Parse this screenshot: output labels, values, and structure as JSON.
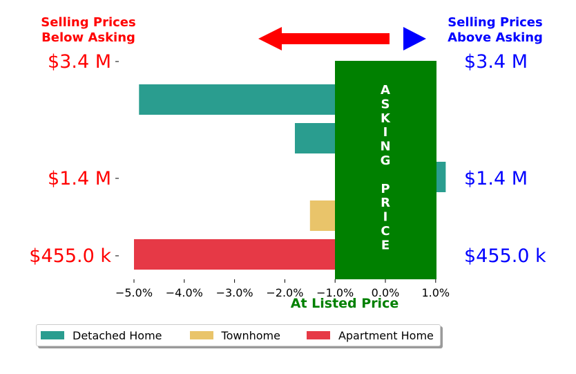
{
  "header": {
    "left_label": [
      "Selling Prices",
      "Below Asking"
    ],
    "right_label": [
      "Selling Prices",
      "Above Asking"
    ],
    "left_color": "#ff0000",
    "right_color": "#0000ff"
  },
  "arrows": {
    "left_arrow_icon": "left-arrow-icon",
    "right_arrow_icon": "right-arrow-icon",
    "left_color": "#ff0000",
    "right_color": "#0000ff"
  },
  "asking_box": {
    "letters": [
      "A",
      "S",
      "K",
      "I",
      "N",
      "G",
      "",
      "P",
      "R",
      "I",
      "C",
      "E"
    ],
    "color": "#008000"
  },
  "chart_data": {
    "type": "bar",
    "orientation": "horizontal",
    "xlabel": "At Listed Price",
    "xlim": [
      -5.2,
      1.0
    ],
    "x_ticks": [
      -5,
      -4,
      -3,
      -2,
      -1,
      0,
      1
    ],
    "x_tick_labels": [
      "−5.0%",
      "−4.0%",
      "−3.0%",
      "−2.0%",
      "−1.0%",
      "0.0%",
      "1.0%"
    ],
    "y_tick_labels_left": [
      "$3.4 M",
      "$1.4 M",
      "$455.0 k"
    ],
    "y_tick_labels_right": [
      "$3.4 M",
      "$1.4 M",
      "$455.0 k"
    ],
    "bars": [
      {
        "series": "Detached Home",
        "value": -4.9
      },
      {
        "series": "Detached Home",
        "value": -1.8
      },
      {
        "series": "Detached Home",
        "value": 1.2
      },
      {
        "series": "Townhome",
        "value": -1.5
      },
      {
        "series": "Apartment Home",
        "value": -5.0
      }
    ],
    "series": [
      {
        "name": "Detached Home",
        "color": "#2a9d8f"
      },
      {
        "name": "Townhome",
        "color": "#e9c46a"
      },
      {
        "name": "Apartment Home",
        "color": "#e63946"
      }
    ],
    "legend_position": "bottom"
  }
}
